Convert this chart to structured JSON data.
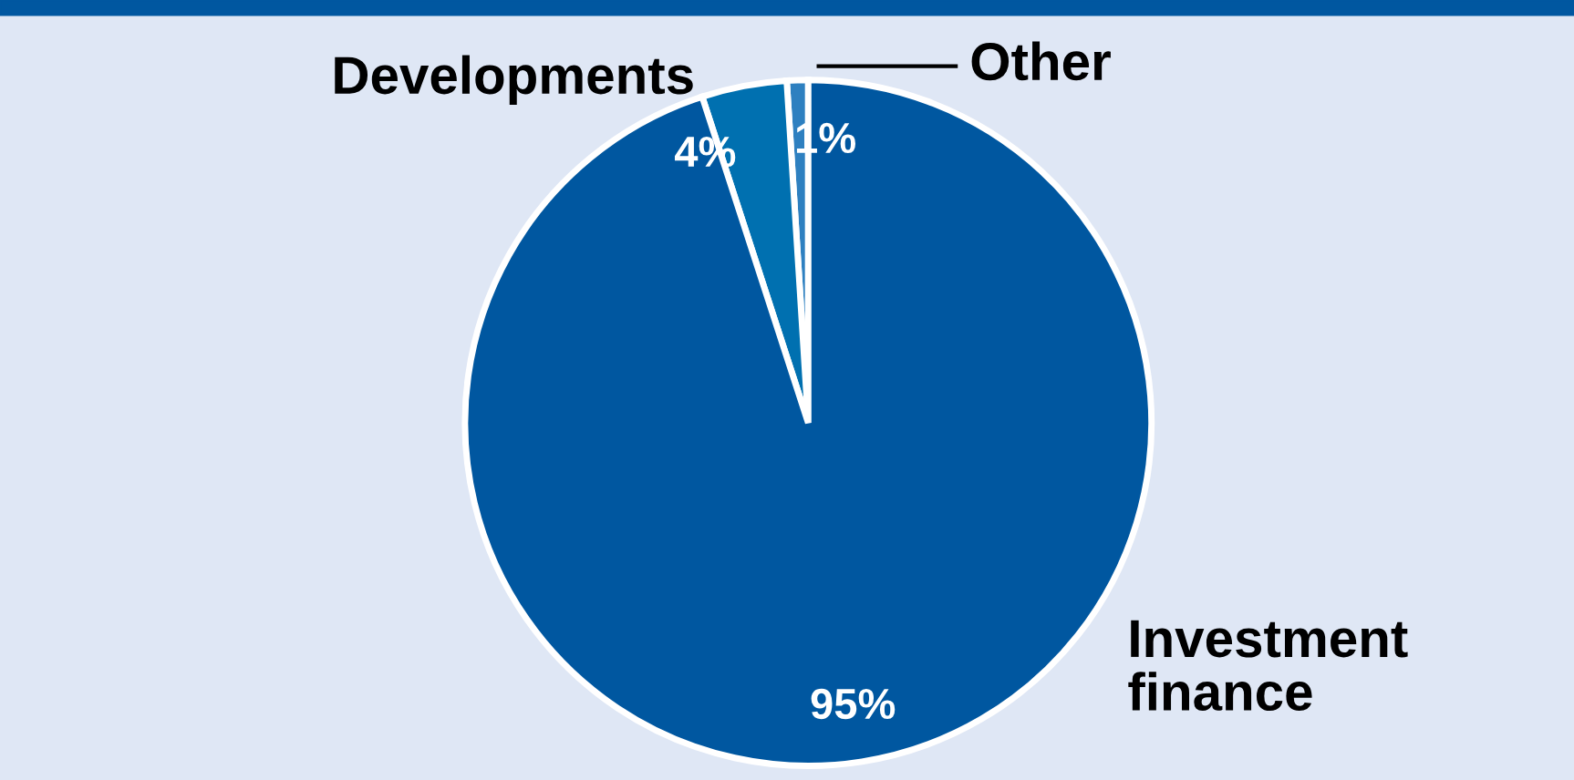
{
  "chart_data": {
    "type": "pie",
    "categories": [
      "Other",
      "Developments",
      "Investment finance"
    ],
    "values": [
      1,
      4,
      95
    ],
    "colors": [
      "#2e80c0",
      "#0070b0",
      "#0057a0"
    ],
    "value_labels": [
      "1%",
      "4%",
      "95%"
    ],
    "legend": false
  }
}
